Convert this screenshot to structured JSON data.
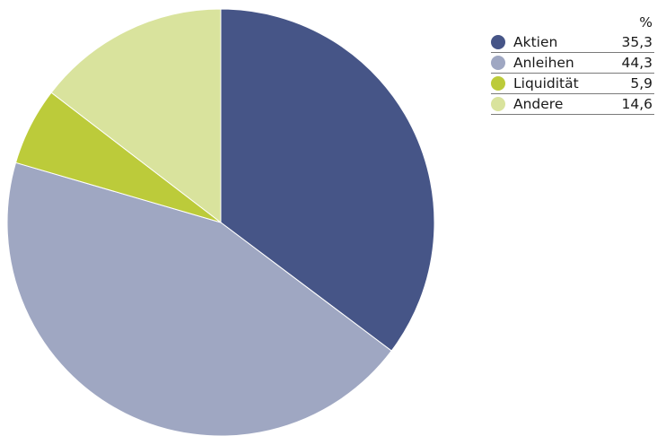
{
  "chart_data": {
    "type": "pie",
    "unit": "%",
    "categories": [
      "Aktien",
      "Anleihen",
      "Liquidität",
      "Andere"
    ],
    "values": [
      35.3,
      44.3,
      5.9,
      14.6
    ],
    "value_labels": [
      "35,3",
      "44,3",
      "5,9",
      "14,6"
    ],
    "colors": [
      "#465587",
      "#9fa7c2",
      "#bccb3a",
      "#d9e39d"
    ],
    "legend": "right",
    "start": "top",
    "direction": "clockwise"
  },
  "legend": {
    "unit_header": "%",
    "rows": [
      {
        "label": "Aktien",
        "value": "35,3",
        "color": "#465587"
      },
      {
        "label": "Anleihen",
        "value": "44,3",
        "color": "#9fa7c2"
      },
      {
        "label": "Liquidität",
        "value": "5,9",
        "color": "#bccb3a"
      },
      {
        "label": "Andere",
        "value": "14,6",
        "color": "#d9e39d"
      }
    ]
  }
}
